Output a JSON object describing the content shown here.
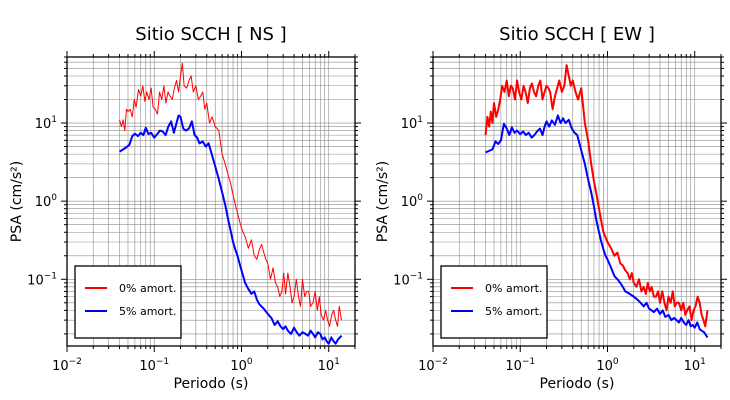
{
  "chart_data": [
    {
      "type": "line",
      "title": "Sitio SCCH [ NS ]",
      "xlabel": "Periodo (s)",
      "ylabel": "PSA (cm/s²)",
      "x_scale": "log",
      "y_scale": "log",
      "xlim": [
        0.01,
        20
      ],
      "ylim": [
        0.014,
        70
      ],
      "grid": true,
      "legend_position": "bottom-left",
      "x_ticks": [
        {
          "value": 0.01,
          "base": "10",
          "exp": "−2"
        },
        {
          "value": 0.1,
          "base": "10",
          "exp": "−1"
        },
        {
          "value": 1,
          "base": "10",
          "exp": "0"
        },
        {
          "value": 10,
          "base": "10",
          "exp": "1"
        }
      ],
      "y_ticks": [
        {
          "value": 0.1,
          "base": "10",
          "exp": "−1"
        },
        {
          "value": 1,
          "base": "10",
          "exp": "0"
        },
        {
          "value": 10,
          "base": "10",
          "exp": "1"
        }
      ],
      "series": [
        {
          "name": "0% amort.",
          "color": "#ff0000",
          "width": 1,
          "x": [
            0.04,
            0.042,
            0.044,
            0.046,
            0.048,
            0.05,
            0.053,
            0.056,
            0.059,
            0.062,
            0.066,
            0.07,
            0.074,
            0.078,
            0.082,
            0.087,
            0.092,
            0.097,
            0.103,
            0.109,
            0.115,
            0.122,
            0.129,
            0.136,
            0.144,
            0.152,
            0.161,
            0.17,
            0.18,
            0.19,
            0.2,
            0.21,
            0.22,
            0.235,
            0.25,
            0.265,
            0.28,
            0.3,
            0.32,
            0.34,
            0.36,
            0.38,
            0.4,
            0.43,
            0.46,
            0.5,
            0.55,
            0.6,
            0.65,
            0.7,
            0.75,
            0.8,
            0.85,
            0.9,
            1.0,
            1.1,
            1.2,
            1.3,
            1.4,
            1.5,
            1.6,
            1.7,
            1.8,
            1.9,
            2.0,
            2.15,
            2.3,
            2.45,
            2.6,
            2.75,
            2.9,
            3.05,
            3.2,
            3.4,
            3.6,
            3.8,
            4.0,
            4.25,
            4.5,
            4.75,
            5.0,
            5.3,
            5.6,
            5.9,
            6.2,
            6.6,
            7.0,
            7.4,
            7.8,
            8.2,
            8.7,
            9.2,
            9.7,
            10.2,
            10.8,
            11.4,
            12.0,
            12.6,
            13.2,
            14.0
          ],
          "y": [
            11,
            9,
            11,
            8,
            15,
            14,
            15,
            12,
            20,
            16,
            27,
            22,
            30,
            19,
            25,
            20,
            28,
            16,
            15,
            13,
            25,
            20,
            30,
            18,
            25,
            22,
            20,
            28,
            35,
            25,
            40,
            58,
            30,
            28,
            35,
            40,
            25,
            30,
            20,
            22,
            25,
            15,
            18,
            10,
            12,
            9,
            8,
            4,
            3,
            2.2,
            1.7,
            1.2,
            0.9,
            0.7,
            0.45,
            0.35,
            0.25,
            0.32,
            0.2,
            0.18,
            0.24,
            0.28,
            0.22,
            0.18,
            0.16,
            0.1,
            0.14,
            0.09,
            0.08,
            0.06,
            0.07,
            0.12,
            0.065,
            0.12,
            0.08,
            0.05,
            0.06,
            0.1,
            0.06,
            0.045,
            0.1,
            0.06,
            0.07,
            0.07,
            0.045,
            0.05,
            0.07,
            0.04,
            0.06,
            0.035,
            0.03,
            0.04,
            0.03,
            0.025,
            0.035,
            0.04,
            0.03,
            0.025,
            0.045,
            0.03
          ]
        },
        {
          "name": "5% amort.",
          "color": "#0000ff",
          "width": 2,
          "x": [
            0.04,
            0.044,
            0.048,
            0.052,
            0.056,
            0.06,
            0.065,
            0.07,
            0.075,
            0.08,
            0.086,
            0.092,
            0.1,
            0.108,
            0.116,
            0.125,
            0.135,
            0.145,
            0.156,
            0.168,
            0.18,
            0.19,
            0.2,
            0.215,
            0.23,
            0.25,
            0.27,
            0.29,
            0.31,
            0.33,
            0.36,
            0.39,
            0.42,
            0.45,
            0.5,
            0.55,
            0.6,
            0.65,
            0.7,
            0.75,
            0.8,
            0.85,
            0.9,
            0.95,
            1.0,
            1.1,
            1.2,
            1.3,
            1.4,
            1.5,
            1.6,
            1.8,
            2.0,
            2.2,
            2.4,
            2.6,
            2.8,
            3.0,
            3.2,
            3.4,
            3.7,
            4.0,
            4.3,
            4.6,
            5.0,
            5.4,
            5.8,
            6.2,
            6.6,
            7.0,
            7.5,
            8.0,
            8.5,
            9.0,
            9.5,
            10.0,
            10.7,
            11.4,
            12.0,
            12.8,
            14.0
          ],
          "y": [
            4.3,
            4.6,
            4.9,
            5.3,
            6.8,
            7.3,
            6.8,
            7.5,
            7.0,
            8.7,
            7.2,
            7.5,
            6.5,
            7.2,
            8.0,
            7.8,
            7.0,
            9.0,
            10.5,
            7.5,
            10.0,
            12.5,
            12.0,
            8.5,
            8.0,
            8.5,
            10.5,
            7.0,
            6.5,
            5.5,
            5.8,
            5.0,
            5.5,
            4.2,
            2.8,
            1.9,
            1.3,
            0.9,
            0.6,
            0.42,
            0.3,
            0.24,
            0.2,
            0.16,
            0.13,
            0.09,
            0.075,
            0.065,
            0.07,
            0.055,
            0.048,
            0.042,
            0.036,
            0.032,
            0.026,
            0.029,
            0.025,
            0.023,
            0.025,
            0.022,
            0.02,
            0.024,
            0.021,
            0.019,
            0.021,
            0.02,
            0.019,
            0.022,
            0.02,
            0.018,
            0.021,
            0.02,
            0.017,
            0.018,
            0.016,
            0.015,
            0.018,
            0.016,
            0.015,
            0.017,
            0.019
          ]
        }
      ]
    },
    {
      "type": "line",
      "title": "Sitio SCCH [ EW ]",
      "xlabel": "Periodo (s)",
      "ylabel": "PSA (cm/s²)",
      "x_scale": "log",
      "y_scale": "log",
      "xlim": [
        0.01,
        20
      ],
      "ylim": [
        0.014,
        70
      ],
      "grid": true,
      "legend_position": "bottom-left",
      "x_ticks": [
        {
          "value": 0.01,
          "base": "10",
          "exp": "−2"
        },
        {
          "value": 0.1,
          "base": "10",
          "exp": "−1"
        },
        {
          "value": 1,
          "base": "10",
          "exp": "0"
        },
        {
          "value": 10,
          "base": "10",
          "exp": "1"
        }
      ],
      "y_ticks": [
        {
          "value": 0.1,
          "base": "10",
          "exp": "−1"
        },
        {
          "value": 1,
          "base": "10",
          "exp": "0"
        },
        {
          "value": 10,
          "base": "10",
          "exp": "1"
        }
      ],
      "series": [
        {
          "name": "0% amort.",
          "color": "#ff0000",
          "width": 2,
          "x": [
            0.04,
            0.042,
            0.044,
            0.046,
            0.048,
            0.05,
            0.053,
            0.056,
            0.059,
            0.062,
            0.066,
            0.07,
            0.074,
            0.078,
            0.082,
            0.087,
            0.092,
            0.097,
            0.103,
            0.109,
            0.115,
            0.122,
            0.129,
            0.136,
            0.144,
            0.152,
            0.161,
            0.17,
            0.18,
            0.19,
            0.2,
            0.21,
            0.22,
            0.235,
            0.25,
            0.265,
            0.28,
            0.3,
            0.32,
            0.34,
            0.36,
            0.38,
            0.4,
            0.43,
            0.46,
            0.5,
            0.55,
            0.6,
            0.65,
            0.7,
            0.75,
            0.8,
            0.85,
            0.9,
            1.0,
            1.1,
            1.2,
            1.3,
            1.4,
            1.5,
            1.6,
            1.7,
            1.8,
            1.9,
            2.0,
            2.15,
            2.3,
            2.45,
            2.6,
            2.75,
            2.9,
            3.05,
            3.2,
            3.4,
            3.6,
            3.8,
            4.0,
            4.25,
            4.5,
            4.75,
            5.0,
            5.3,
            5.6,
            5.9,
            6.2,
            6.6,
            7.0,
            7.4,
            7.8,
            8.2,
            8.7,
            9.2,
            9.7,
            10.2,
            10.8,
            11.4,
            12.0,
            12.6,
            13.2,
            14.0
          ],
          "y": [
            7,
            12,
            9,
            14,
            10,
            18,
            12,
            15,
            20,
            30,
            25,
            35,
            22,
            30,
            28,
            20,
            35,
            25,
            20,
            30,
            25,
            18,
            28,
            32,
            25,
            22,
            30,
            35,
            20,
            25,
            30,
            28,
            25,
            15,
            22,
            28,
            35,
            25,
            30,
            55,
            40,
            30,
            35,
            25,
            20,
            28,
            10,
            6,
            3,
            1.8,
            1.2,
            0.8,
            0.55,
            0.4,
            0.3,
            0.25,
            0.2,
            0.22,
            0.16,
            0.15,
            0.13,
            0.12,
            0.1,
            0.12,
            0.09,
            0.08,
            0.1,
            0.07,
            0.08,
            0.065,
            0.09,
            0.07,
            0.08,
            0.06,
            0.06,
            0.07,
            0.05,
            0.07,
            0.05,
            0.04,
            0.06,
            0.05,
            0.07,
            0.045,
            0.05,
            0.05,
            0.04,
            0.05,
            0.035,
            0.04,
            0.045,
            0.03,
            0.04,
            0.045,
            0.06,
            0.05,
            0.035,
            0.03,
            0.025,
            0.04
          ]
        },
        {
          "name": "5% amort.",
          "color": "#0000ff",
          "width": 2,
          "x": [
            0.04,
            0.044,
            0.048,
            0.052,
            0.056,
            0.06,
            0.065,
            0.07,
            0.075,
            0.08,
            0.086,
            0.092,
            0.1,
            0.108,
            0.116,
            0.125,
            0.135,
            0.145,
            0.156,
            0.168,
            0.18,
            0.19,
            0.2,
            0.215,
            0.23,
            0.25,
            0.27,
            0.29,
            0.31,
            0.33,
            0.36,
            0.39,
            0.42,
            0.45,
            0.5,
            0.55,
            0.6,
            0.65,
            0.7,
            0.75,
            0.8,
            0.85,
            0.9,
            0.95,
            1.0,
            1.1,
            1.2,
            1.3,
            1.4,
            1.5,
            1.6,
            1.8,
            2.0,
            2.2,
            2.4,
            2.6,
            2.8,
            3.0,
            3.2,
            3.4,
            3.7,
            4.0,
            4.3,
            4.6,
            5.0,
            5.4,
            5.8,
            6.2,
            6.6,
            7.0,
            7.5,
            8.0,
            8.5,
            9.0,
            9.5,
            10.0,
            10.7,
            11.4,
            12.0,
            12.8,
            14.0
          ],
          "y": [
            4.2,
            4.4,
            4.6,
            5.8,
            5.4,
            6.0,
            9.8,
            8.5,
            7.0,
            8.8,
            7.5,
            8.0,
            7.2,
            7.8,
            7.0,
            7.5,
            6.5,
            7.0,
            7.8,
            8.5,
            7.0,
            9.0,
            10.5,
            9.0,
            10.8,
            9.5,
            12.5,
            10.0,
            11.5,
            10.0,
            11.0,
            8.5,
            7.5,
            7.0,
            4.5,
            3.0,
            1.9,
            1.3,
            0.85,
            0.55,
            0.4,
            0.3,
            0.24,
            0.2,
            0.18,
            0.14,
            0.11,
            0.1,
            0.09,
            0.08,
            0.07,
            0.065,
            0.06,
            0.055,
            0.05,
            0.045,
            0.05,
            0.042,
            0.04,
            0.038,
            0.042,
            0.036,
            0.04,
            0.033,
            0.035,
            0.03,
            0.032,
            0.03,
            0.028,
            0.032,
            0.028,
            0.026,
            0.03,
            0.025,
            0.026,
            0.024,
            0.028,
            0.023,
            0.022,
            0.021,
            0.018
          ]
        }
      ]
    }
  ]
}
